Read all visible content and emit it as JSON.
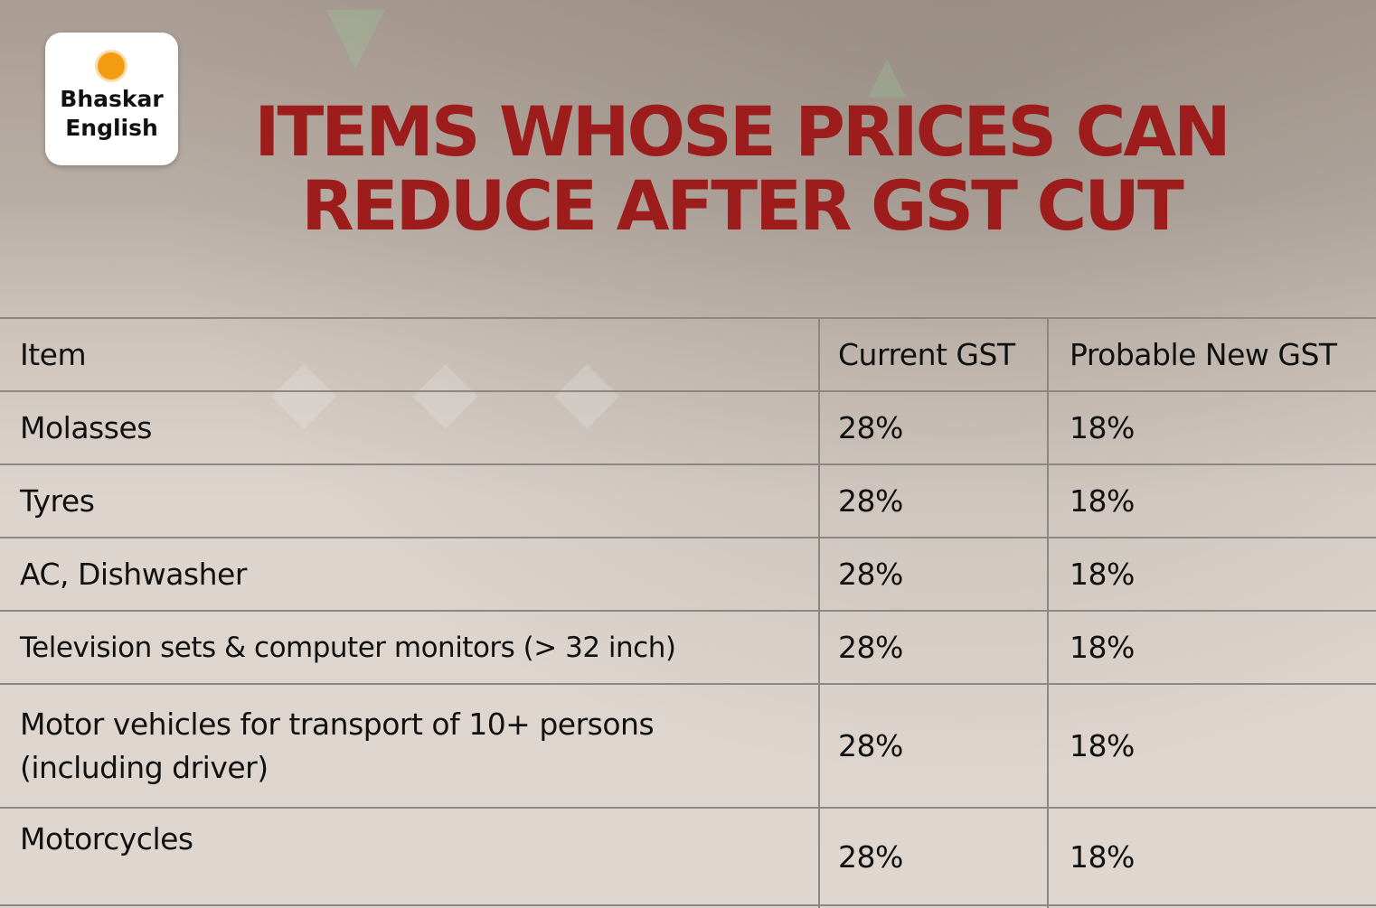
{
  "brand": {
    "name_line1": "Bhaskar",
    "name_line2": "English",
    "accent_color": "#f39c12"
  },
  "title": {
    "line1": "ITEMS WHOSE PRICES CAN",
    "line2": "REDUCE AFTER GST CUT",
    "color": "#9d1c1c"
  },
  "table": {
    "headers": [
      "Item",
      "Current GST",
      "Probable New GST"
    ],
    "rows": [
      {
        "item": "Molasses",
        "current": "28%",
        "new": "18%"
      },
      {
        "item": "Tyres",
        "current": "28%",
        "new": "18%"
      },
      {
        "item": "AC, Dishwasher",
        "current": "28%",
        "new": "18%"
      },
      {
        "item": "Television sets & computer monitors (> 32 inch)",
        "current": "28%",
        "new": "18%"
      },
      {
        "item_line1": "Motor vehicles for transport of 10+ persons",
        "item_line2": "(including driver)",
        "current": "28%",
        "new": "18%"
      },
      {
        "item": "Motorcycles",
        "current": "28%",
        "new": "18%"
      }
    ]
  }
}
